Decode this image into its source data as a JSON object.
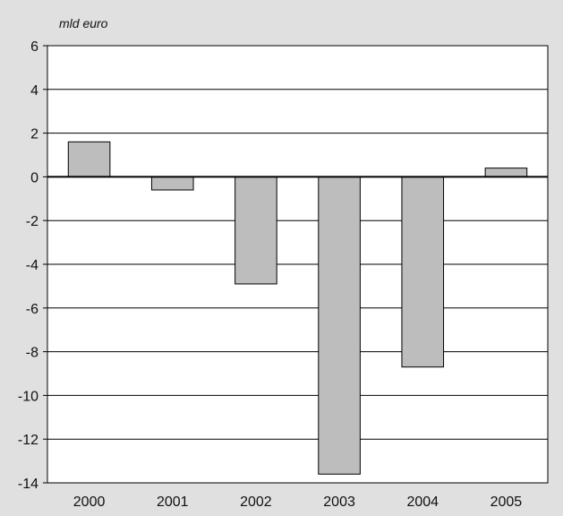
{
  "chart_data": {
    "type": "bar",
    "title": "",
    "xlabel": "",
    "ylabel": "mld euro",
    "categories": [
      "2000",
      "2001",
      "2002",
      "2003",
      "2004",
      "2005"
    ],
    "values": [
      1.6,
      -0.6,
      -4.9,
      -13.6,
      -8.7,
      0.4
    ],
    "ylim": [
      -14,
      6
    ],
    "yticks": [
      6,
      4,
      2,
      0,
      -2,
      -4,
      -6,
      -8,
      -10,
      -12,
      -14
    ],
    "grid": true,
    "legend": "none",
    "colors": {
      "background": "#e0e0e0",
      "plot": "#ffffff",
      "bar_fill": "#bdbdbd",
      "bar_stroke": "#000000",
      "grid": "#000000"
    }
  }
}
